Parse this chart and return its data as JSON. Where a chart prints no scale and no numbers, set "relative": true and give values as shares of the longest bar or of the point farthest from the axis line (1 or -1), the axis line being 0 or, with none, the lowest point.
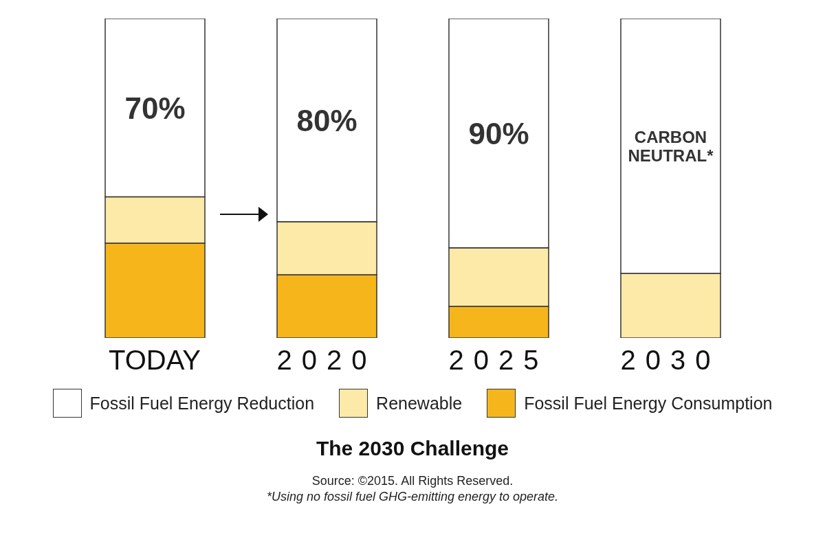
{
  "chart_data": {
    "type": "bar",
    "title": "The 2030 Challenge",
    "categories": [
      "TODAY",
      "2020",
      "2025",
      "2030"
    ],
    "relative": true,
    "stacked": true,
    "legend": "bottom",
    "series": [
      {
        "name": "Fossil Fuel Energy Consumption",
        "color": "#f6b61b",
        "values": [
          0.297,
          0.198,
          0.099,
          0
        ]
      },
      {
        "name": "Renewable",
        "color": "#fdeaa8",
        "values": [
          0.145,
          0.166,
          0.183,
          0.202
        ]
      },
      {
        "name": "Fossil Fuel Energy Reduction",
        "color": "#ffffff",
        "values": [
          0.558,
          0.636,
          0.718,
          0.798
        ]
      }
    ],
    "annotations": [
      "70%",
      "80%",
      "90%",
      "CARBON NEUTRAL*",
      "Source: ©2015. All Rights Reserved.",
      "*Using no fossil fuel GHG-emitting energy to operate."
    ]
  }
}
